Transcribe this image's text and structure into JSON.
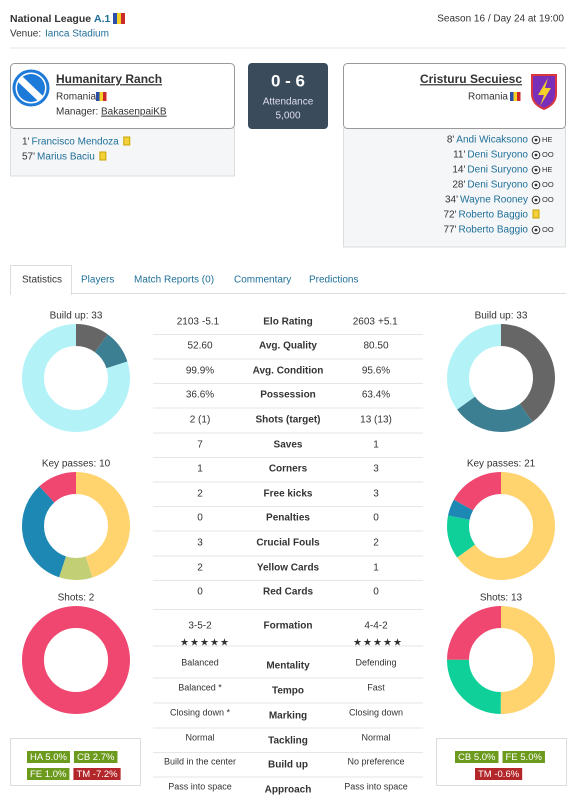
{
  "header": {
    "league": "National League",
    "division": "A.1",
    "venue_label": "Venue:",
    "venue": "Ianca Stadium",
    "season": "Season 16 / Day 24 at 19:00"
  },
  "home": {
    "name": "Humanitary Ranch",
    "country": "Romania",
    "manager_label": "Manager:",
    "manager": "BakasenpaiKB",
    "events": [
      {
        "minute": "1'",
        "player": "Francisco Mendoza"
      },
      {
        "minute": "57'",
        "player": "Marius Baciu"
      }
    ]
  },
  "score": {
    "result": "0 - 6",
    "attendance_label": "Attendance",
    "attendance": "5,000"
  },
  "away": {
    "name": "Cristuru Secuiesc",
    "country": "Romania",
    "events": [
      {
        "minute": "8'",
        "player": "Andi Wicaksono",
        "kind": "HE"
      },
      {
        "minute": "11'",
        "player": "Deni Suryono",
        "kind": "OO"
      },
      {
        "minute": "14'",
        "player": "Deni Suryono",
        "kind": "HE"
      },
      {
        "minute": "28'",
        "player": "Deni Suryono",
        "kind": "OO"
      },
      {
        "minute": "34'",
        "player": "Wayne Rooney",
        "kind": "OO"
      },
      {
        "minute": "72'",
        "player": "Roberto Baggio"
      },
      {
        "minute": "77'",
        "player": "Roberto Baggio",
        "kind": "OO"
      }
    ]
  },
  "tabs": [
    "Statistics",
    "Players",
    "Match Reports (0)",
    "Commentary",
    "Predictions"
  ],
  "stats": {
    "rows": [
      {
        "label": "Elo Rating",
        "home": "2103",
        "home_change": "-5.1",
        "away": "2603",
        "away_change": "+5.1"
      },
      {
        "label": "Avg. Quality",
        "home": "52.60",
        "away": "80.50"
      },
      {
        "label": "Avg. Condition",
        "home": "99.9%",
        "away": "95.6%"
      },
      {
        "label": "Possession",
        "home": "36.6%",
        "away": "63.4%"
      },
      {
        "label": "Shots (target)",
        "home": "2 (1)",
        "away": "13 (13)"
      },
      {
        "label": "Saves",
        "home": "7",
        "away": "1"
      },
      {
        "label": "Corners",
        "home": "1",
        "away": "3"
      },
      {
        "label": "Free kicks",
        "home": "2",
        "away": "3"
      },
      {
        "label": "Penalties",
        "home": "0",
        "away": "0"
      },
      {
        "label": "Crucial Fouls",
        "home": "3",
        "away": "2"
      },
      {
        "label": "Yellow Cards",
        "home": "2",
        "away": "1"
      },
      {
        "label": "Red Cards",
        "home": "0",
        "away": "0"
      },
      {
        "label": "Formation",
        "home": "3-5-2",
        "away": "4-4-2"
      },
      {
        "label": "Mentality",
        "home": "Balanced",
        "away": "Defending"
      },
      {
        "label": "Tempo",
        "home": "Balanced *",
        "away": "Fast"
      },
      {
        "label": "Marking",
        "home": "Closing down *",
        "away": "Closing down"
      },
      {
        "label": "Tackling",
        "home": "Normal",
        "away": "Normal"
      },
      {
        "label": "Build up",
        "home": "Build in the center",
        "away": "No preference"
      },
      {
        "label": "Approach",
        "home": "Pass into space",
        "away": "Pass into space"
      }
    ]
  },
  "home_charts": [
    {
      "type": "pie",
      "title": "Build up: 33",
      "values": [
        10,
        10,
        80
      ],
      "colors": [
        "#666666",
        "#3d7f92",
        "#b3f2f7"
      ]
    },
    {
      "type": "pie",
      "title": "Key passes: 10",
      "values": [
        45,
        10,
        33,
        12
      ],
      "colors": [
        "#ffd36e",
        "#c3cf74",
        "#1e88b4",
        "#ef476f"
      ]
    },
    {
      "type": "pie",
      "title": "Shots: 2",
      "values": [
        100
      ],
      "colors": [
        "#ef476f"
      ]
    }
  ],
  "away_charts": [
    {
      "type": "pie",
      "title": "Build up: 33",
      "values": [
        40,
        25,
        35
      ],
      "colors": [
        "#666666",
        "#3d7f92",
        "#b3f2f7"
      ]
    },
    {
      "type": "pie",
      "title": "Key passes: 21",
      "values": [
        65,
        13,
        5,
        17
      ],
      "colors": [
        "#ffd36e",
        "#10d09a",
        "#1e88b4",
        "#ef476f"
      ]
    },
    {
      "type": "pie",
      "title": "Shots: 13",
      "values": [
        50,
        25,
        25
      ],
      "colors": [
        "#ffd36e",
        "#10d09a",
        "#ef476f"
      ]
    }
  ],
  "home_tags": [
    {
      "text": "HA 5.0%",
      "color": "#6c9a1d"
    },
    {
      "text": "CB 2.7%",
      "color": "#6c9a1d"
    },
    {
      "text": "FE 1.0%",
      "color": "#6c9a1d"
    },
    {
      "text": "TM -7.2%",
      "color": "#b3262a"
    }
  ],
  "away_tags": [
    {
      "text": "CB 5.0%",
      "color": "#6c9a1d"
    },
    {
      "text": "FE 5.0%",
      "color": "#6c9a1d"
    },
    {
      "text": "TM -0.6%",
      "color": "#b3262a"
    }
  ]
}
